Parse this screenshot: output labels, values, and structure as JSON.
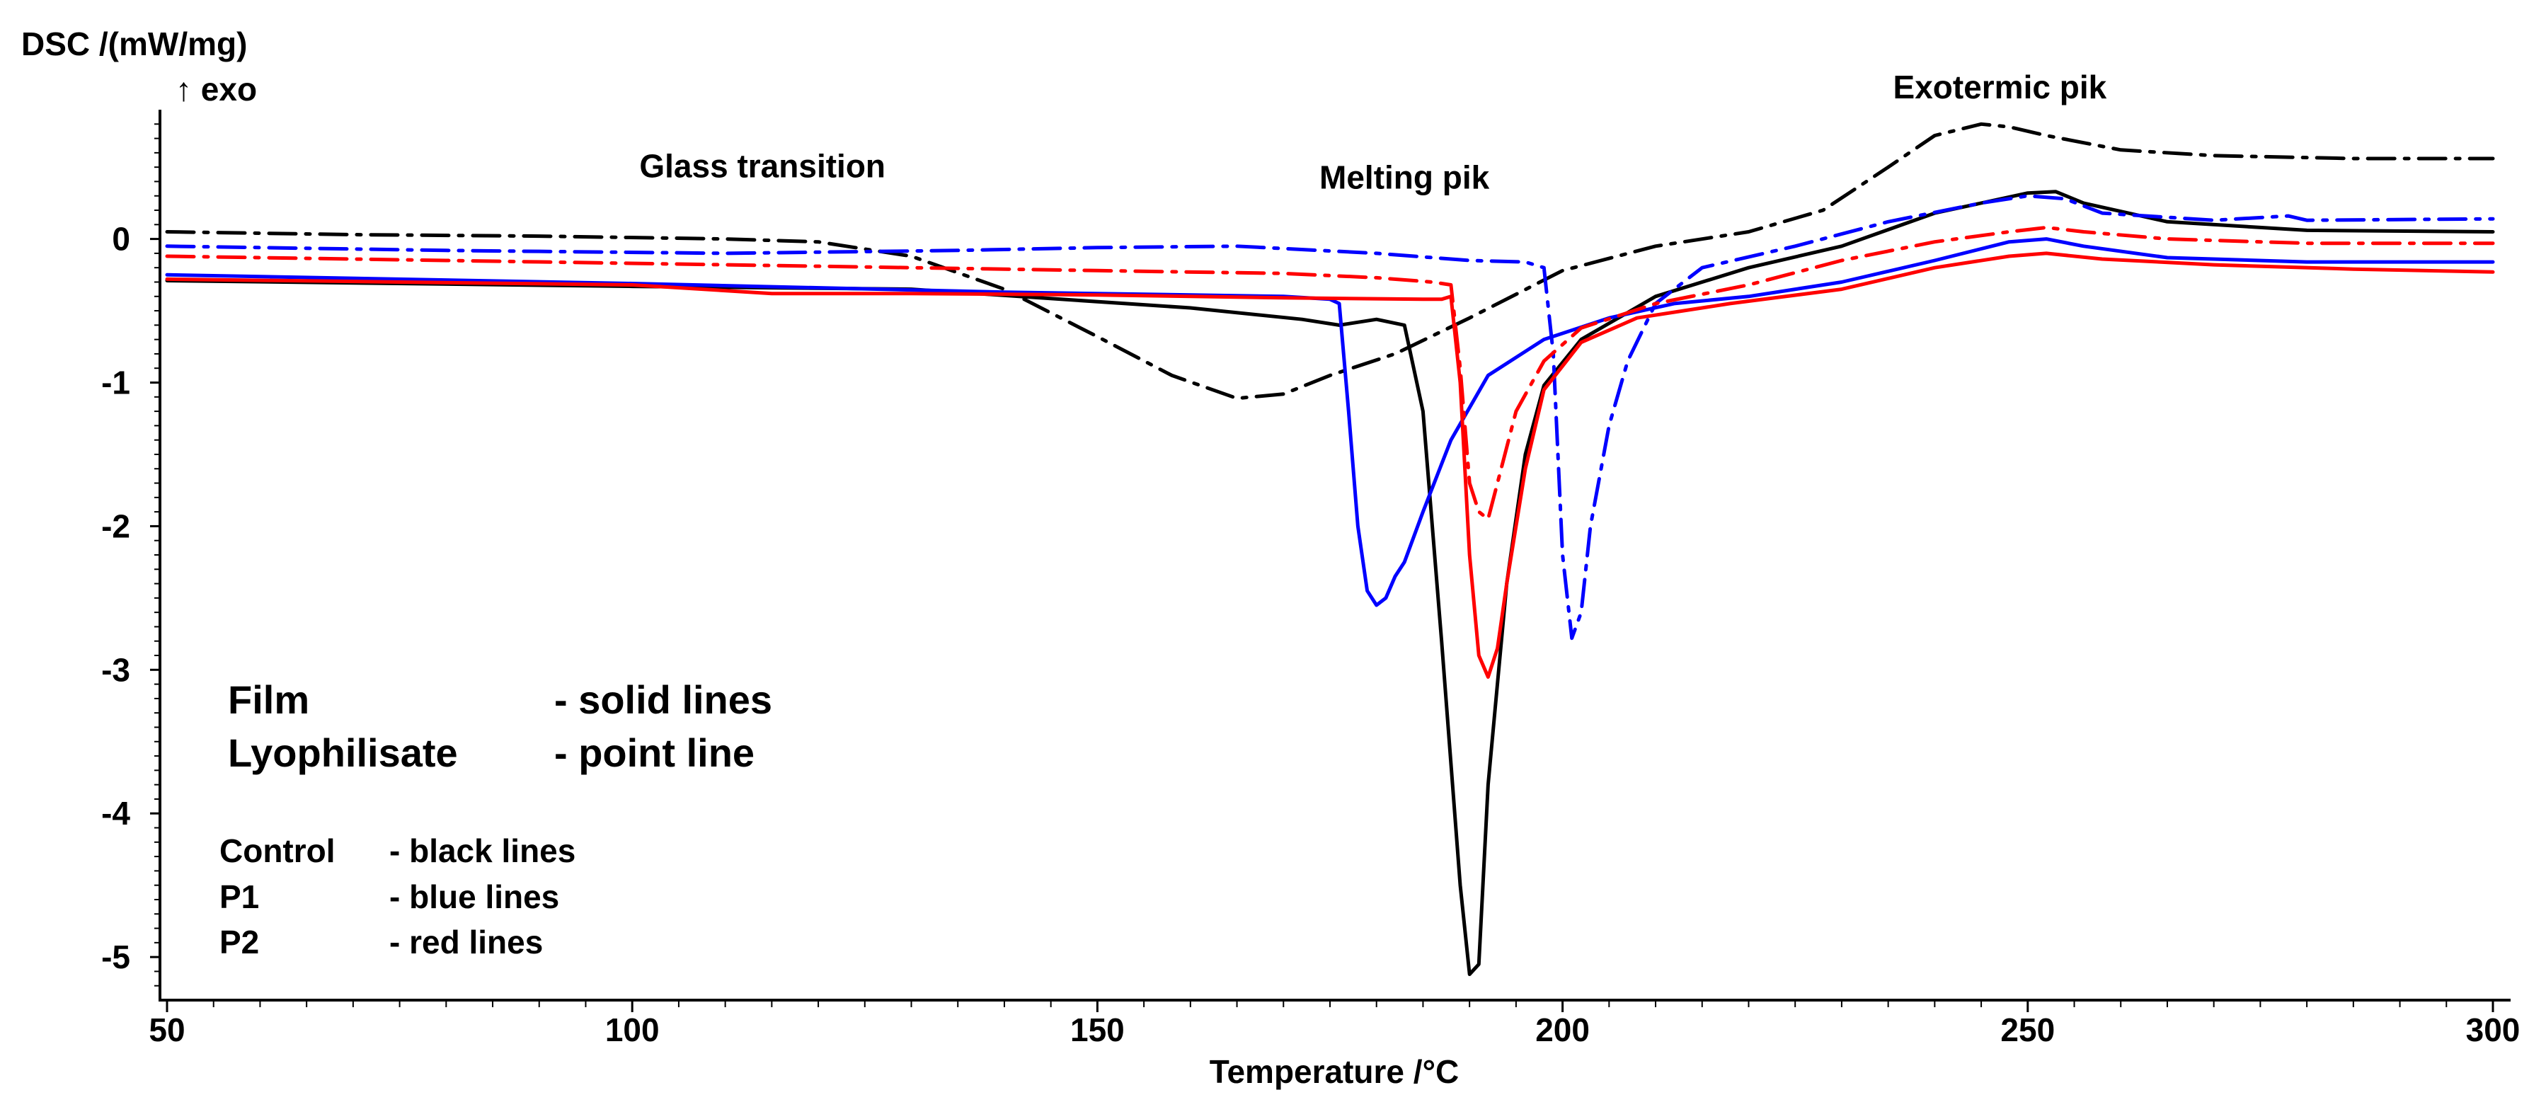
{
  "chart_data": {
    "type": "line",
    "ylabel": "DSC /(mW/mg)",
    "ylabel_sub": "↑ exo",
    "xlabel": "Temperature /°C",
    "xlim": [
      50,
      300
    ],
    "ylim": [
      -5.3,
      0.9
    ],
    "xticks": [
      50,
      100,
      150,
      200,
      250,
      300
    ],
    "yticks": [
      0,
      -1,
      -2,
      -3,
      -4,
      -5
    ],
    "grid": false,
    "annotations": [
      {
        "id": "glass",
        "text": "Glass transition",
        "x": 114,
        "y": 0.43
      },
      {
        "id": "melting",
        "text": "Melting pik",
        "x": 183,
        "y": 0.35
      },
      {
        "id": "exotermic",
        "text": "Exotermic pik",
        "x": 247,
        "y": 0.98
      }
    ],
    "legend": {
      "film": "Film",
      "film_desc": "- solid lines",
      "lyo": "Lyophilisate",
      "lyo_desc": "- point line",
      "control": "Control",
      "control_desc": "- black lines",
      "p1": "P1",
      "p1_desc": "- blue lines",
      "p2": "P2",
      "p2_desc": "- red lines"
    },
    "series": [
      {
        "name": "Control film",
        "color": "#000000",
        "style": "solid",
        "points": [
          [
            50,
            -0.29
          ],
          [
            100,
            -0.33
          ],
          [
            130,
            -0.35
          ],
          [
            160,
            -0.48
          ],
          [
            172,
            -0.56
          ],
          [
            176,
            -0.6
          ],
          [
            180,
            -0.56
          ],
          [
            183,
            -0.6
          ],
          [
            185,
            -1.2
          ],
          [
            187,
            -2.8
          ],
          [
            189,
            -4.5
          ],
          [
            190,
            -5.12
          ],
          [
            191,
            -5.05
          ],
          [
            192,
            -3.8
          ],
          [
            194,
            -2.4
          ],
          [
            196,
            -1.5
          ],
          [
            198,
            -1.02
          ],
          [
            202,
            -0.7
          ],
          [
            210,
            -0.4
          ],
          [
            220,
            -0.2
          ],
          [
            230,
            -0.05
          ],
          [
            240,
            0.18
          ],
          [
            250,
            0.32
          ],
          [
            253,
            0.33
          ],
          [
            256,
            0.25
          ],
          [
            265,
            0.12
          ],
          [
            280,
            0.06
          ],
          [
            300,
            0.05
          ]
        ]
      },
      {
        "name": "Control lyophilisate",
        "color": "#000000",
        "style": "dashdot",
        "points": [
          [
            50,
            0.05
          ],
          [
            70,
            0.03
          ],
          [
            90,
            0.02
          ],
          [
            110,
            0.0
          ],
          [
            120,
            -0.02
          ],
          [
            130,
            -0.12
          ],
          [
            140,
            -0.35
          ],
          [
            150,
            -0.68
          ],
          [
            158,
            -0.95
          ],
          [
            165,
            -1.11
          ],
          [
            170,
            -1.08
          ],
          [
            175,
            -0.95
          ],
          [
            182,
            -0.8
          ],
          [
            190,
            -0.55
          ],
          [
            200,
            -0.22
          ],
          [
            210,
            -0.05
          ],
          [
            220,
            0.05
          ],
          [
            228,
            0.2
          ],
          [
            235,
            0.5
          ],
          [
            240,
            0.72
          ],
          [
            245,
            0.8
          ],
          [
            248,
            0.78
          ],
          [
            252,
            0.72
          ],
          [
            260,
            0.62
          ],
          [
            270,
            0.58
          ],
          [
            285,
            0.56
          ],
          [
            300,
            0.56
          ]
        ]
      },
      {
        "name": "P1 film",
        "color": "#0000ff",
        "style": "solid",
        "points": [
          [
            50,
            -0.25
          ],
          [
            100,
            -0.31
          ],
          [
            140,
            -0.37
          ],
          [
            170,
            -0.4
          ],
          [
            175,
            -0.42
          ],
          [
            176,
            -0.45
          ],
          [
            177,
            -1.2
          ],
          [
            178,
            -2.0
          ],
          [
            179,
            -2.45
          ],
          [
            180,
            -2.55
          ],
          [
            181,
            -2.5
          ],
          [
            182,
            -2.35
          ],
          [
            183,
            -2.25
          ],
          [
            185,
            -1.9
          ],
          [
            188,
            -1.4
          ],
          [
            192,
            -0.95
          ],
          [
            198,
            -0.7
          ],
          [
            205,
            -0.55
          ],
          [
            212,
            -0.45
          ],
          [
            220,
            -0.4
          ],
          [
            230,
            -0.3
          ],
          [
            240,
            -0.15
          ],
          [
            248,
            -0.02
          ],
          [
            252,
            0.0
          ],
          [
            256,
            -0.05
          ],
          [
            265,
            -0.13
          ],
          [
            280,
            -0.16
          ],
          [
            300,
            -0.16
          ]
        ]
      },
      {
        "name": "P1 lyophilisate",
        "color": "#0000ff",
        "style": "dashdot",
        "points": [
          [
            50,
            -0.05
          ],
          [
            80,
            -0.08
          ],
          [
            110,
            -0.1
          ],
          [
            135,
            -0.08
          ],
          [
            150,
            -0.06
          ],
          [
            165,
            -0.05
          ],
          [
            180,
            -0.1
          ],
          [
            190,
            -0.15
          ],
          [
            196,
            -0.16
          ],
          [
            198,
            -0.2
          ],
          [
            199,
            -0.8
          ],
          [
            200,
            -2.2
          ],
          [
            201,
            -2.78
          ],
          [
            202,
            -2.6
          ],
          [
            203,
            -2.0
          ],
          [
            205,
            -1.3
          ],
          [
            207,
            -0.85
          ],
          [
            210,
            -0.45
          ],
          [
            215,
            -0.2
          ],
          [
            225,
            -0.05
          ],
          [
            235,
            0.12
          ],
          [
            245,
            0.25
          ],
          [
            250,
            0.3
          ],
          [
            254,
            0.28
          ],
          [
            258,
            0.18
          ],
          [
            270,
            0.13
          ],
          [
            278,
            0.16
          ],
          [
            280,
            0.13
          ],
          [
            300,
            0.14
          ]
        ]
      },
      {
        "name": "P2 film",
        "color": "#ff0000",
        "style": "solid",
        "points": [
          [
            50,
            -0.28
          ],
          [
            100,
            -0.32
          ],
          [
            115,
            -0.38
          ],
          [
            130,
            -0.38
          ],
          [
            150,
            -0.39
          ],
          [
            170,
            -0.41
          ],
          [
            185,
            -0.42
          ],
          [
            187,
            -0.42
          ],
          [
            188,
            -0.4
          ],
          [
            189,
            -1.0
          ],
          [
            190,
            -2.2
          ],
          [
            191,
            -2.9
          ],
          [
            192,
            -3.05
          ],
          [
            193,
            -2.85
          ],
          [
            194,
            -2.4
          ],
          [
            196,
            -1.6
          ],
          [
            198,
            -1.05
          ],
          [
            202,
            -0.72
          ],
          [
            208,
            -0.55
          ],
          [
            218,
            -0.45
          ],
          [
            230,
            -0.35
          ],
          [
            240,
            -0.2
          ],
          [
            248,
            -0.12
          ],
          [
            252,
            -0.1
          ],
          [
            258,
            -0.14
          ],
          [
            270,
            -0.18
          ],
          [
            285,
            -0.21
          ],
          [
            300,
            -0.23
          ]
        ]
      },
      {
        "name": "P2 lyophilisate",
        "color": "#ff0000",
        "style": "dashdot",
        "points": [
          [
            50,
            -0.12
          ],
          [
            80,
            -0.15
          ],
          [
            110,
            -0.18
          ],
          [
            150,
            -0.22
          ],
          [
            170,
            -0.24
          ],
          [
            180,
            -0.27
          ],
          [
            186,
            -0.3
          ],
          [
            188,
            -0.32
          ],
          [
            189,
            -0.9
          ],
          [
            190,
            -1.7
          ],
          [
            191,
            -1.9
          ],
          [
            192,
            -1.95
          ],
          [
            193,
            -1.7
          ],
          [
            195,
            -1.2
          ],
          [
            198,
            -0.85
          ],
          [
            202,
            -0.62
          ],
          [
            210,
            -0.45
          ],
          [
            220,
            -0.32
          ],
          [
            230,
            -0.15
          ],
          [
            240,
            -0.02
          ],
          [
            248,
            0.05
          ],
          [
            252,
            0.08
          ],
          [
            256,
            0.05
          ],
          [
            265,
            0.0
          ],
          [
            280,
            -0.03
          ],
          [
            300,
            -0.03
          ]
        ]
      }
    ]
  }
}
